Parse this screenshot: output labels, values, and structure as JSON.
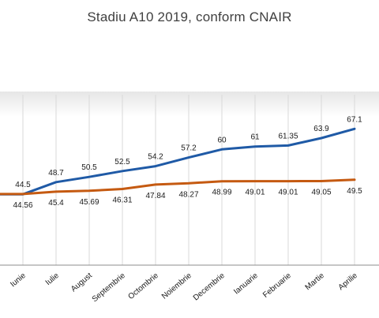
{
  "chart_data": {
    "type": "line",
    "title": "Stadiu A10 2019, conform CNAIR",
    "categories": [
      "",
      "Iunie",
      "Iulie",
      "August",
      "Septembrie",
      "Octombrie",
      "Noiembrie",
      "Decembrie",
      "Ianuarie",
      "Februarie",
      "Martie",
      "Aprilie"
    ],
    "series": [
      {
        "color": "#1f5aa6",
        "values": [
          44.5,
          44.5,
          48.7,
          50.5,
          52.5,
          54.2,
          57.2,
          60,
          61,
          61.35,
          63.9,
          67.1
        ],
        "labels": [
          "",
          "44.5",
          "48.7",
          "50.5",
          "52.5",
          "54.2",
          "57.2",
          "60",
          "61",
          "61.35",
          "63.9",
          "67.1"
        ]
      },
      {
        "color": "#c55a11",
        "values": [
          44.56,
          44.56,
          45.4,
          45.69,
          46.31,
          47.84,
          48.27,
          48.99,
          49.01,
          49.01,
          49.05,
          49.5
        ],
        "labels": [
          "",
          "44.56",
          "45.4",
          "45.69",
          "46.31",
          "47.84",
          "48.27",
          "48.99",
          "49.01",
          "49.01",
          "49.05",
          "49.5"
        ]
      }
    ],
    "ylim": [
      20,
      80
    ],
    "grid": "vertical",
    "legend": "none",
    "colors": {
      "plot_background": "#ffffff",
      "gridline": "#d9d9d9",
      "baseline": "#8c8c8c",
      "band_top": "#e4e4e4"
    }
  }
}
